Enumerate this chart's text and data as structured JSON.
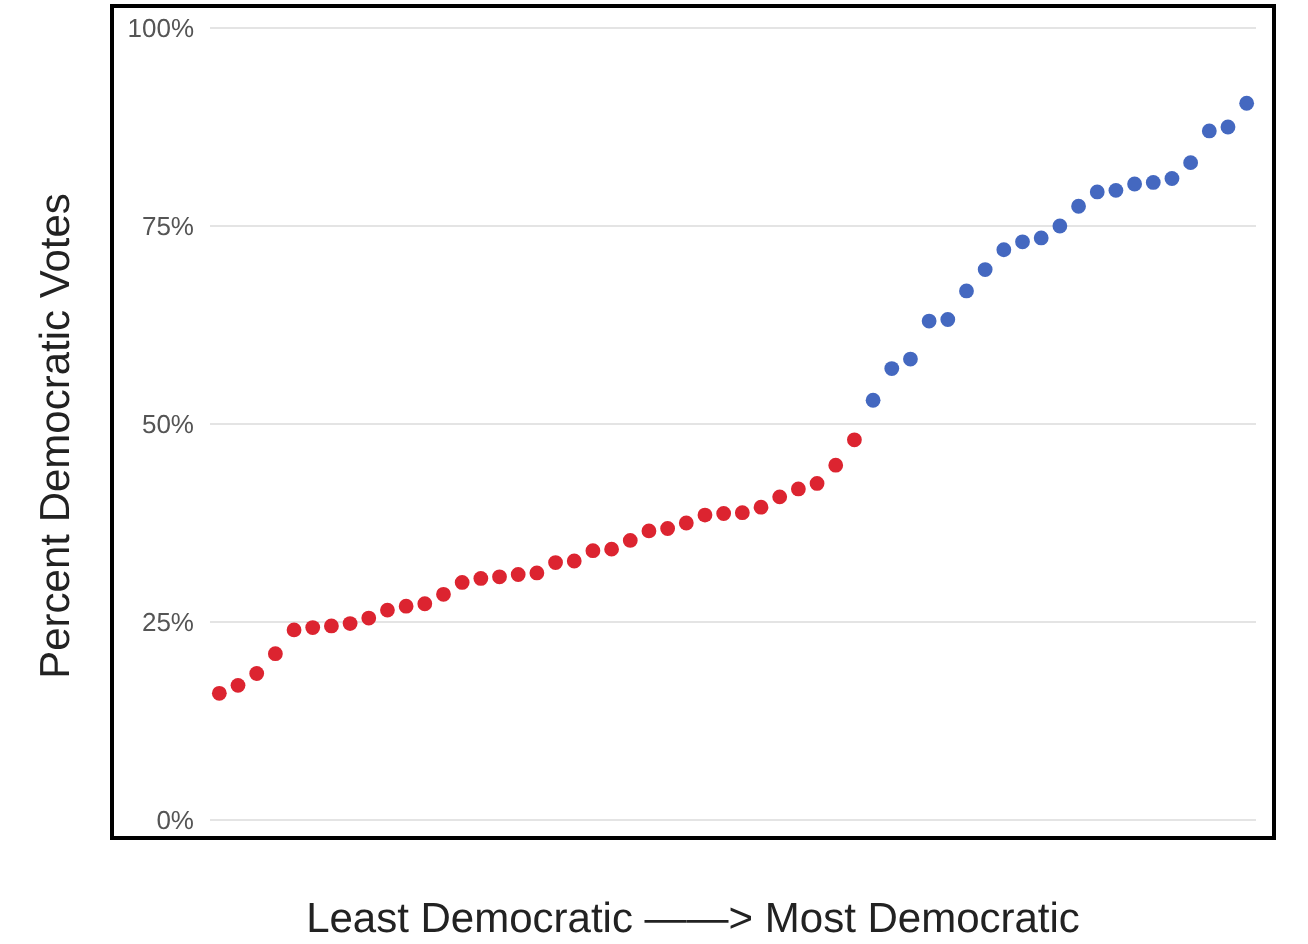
{
  "chart_data": {
    "type": "scatter",
    "xlabel": "Least Democratic ——> Most Democratic",
    "ylabel": "Percent Democratic Votes",
    "categories": [
      null,
      null,
      null,
      null,
      null,
      null,
      null,
      null,
      null,
      null,
      null,
      null,
      null,
      null,
      null,
      null,
      null,
      null,
      null,
      null,
      null,
      null,
      null,
      null,
      null,
      null,
      null,
      null,
      null,
      null,
      null,
      null,
      null,
      null,
      null,
      null,
      null,
      null,
      null,
      null,
      null,
      null,
      null,
      null,
      null,
      null,
      null,
      null,
      null,
      null,
      null,
      null,
      null,
      null,
      null,
      null
    ],
    "series": [
      {
        "color": "#dc2430",
        "values": [
          16,
          17,
          18.5,
          21,
          24,
          24.3,
          24.5,
          24.8,
          25.5,
          26.5,
          27,
          27.3,
          28.5,
          30,
          30.5,
          30.7,
          31,
          31.2,
          32.5,
          32.7,
          34,
          34.2,
          35.3,
          36.5,
          36.8,
          37.5,
          38.5,
          38.7,
          38.8,
          39.5,
          40.8,
          41.8,
          42.5,
          44.8,
          48,
          null,
          null,
          null,
          null,
          null,
          null,
          null,
          null,
          null,
          null,
          null,
          null,
          null,
          null,
          null,
          null,
          null,
          null,
          null,
          null,
          null
        ]
      },
      {
        "color": "#4468c0",
        "values": [
          null,
          null,
          null,
          null,
          null,
          null,
          null,
          null,
          null,
          null,
          null,
          null,
          null,
          null,
          null,
          null,
          null,
          null,
          null,
          null,
          null,
          null,
          null,
          null,
          null,
          null,
          null,
          null,
          null,
          null,
          null,
          null,
          null,
          null,
          null,
          53,
          57,
          58.2,
          63,
          63.2,
          66.8,
          69.5,
          72,
          73,
          73.5,
          75,
          77.5,
          79.3,
          79.5,
          80.3,
          80.5,
          81,
          83,
          87,
          87.5,
          90.5
        ]
      }
    ],
    "ylim": [
      0,
      100
    ],
    "yticks": [
      {
        "value": 0,
        "label": "0%"
      },
      {
        "value": 25,
        "label": "25%"
      },
      {
        "value": 50,
        "label": "50%"
      },
      {
        "value": 75,
        "label": "75%"
      },
      {
        "value": 100,
        "label": "100%"
      }
    ],
    "grid": "y",
    "tick_labels": "y",
    "marker": "circle",
    "legend": false
  }
}
